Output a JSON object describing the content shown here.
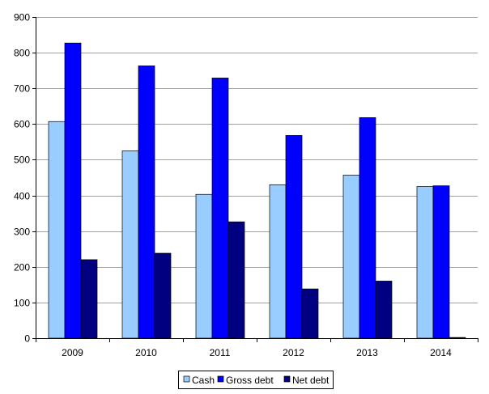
{
  "chart_data": {
    "type": "bar",
    "categories": [
      "2009",
      "2010",
      "2011",
      "2012",
      "2013",
      "2014"
    ],
    "series": [
      {
        "name": "Cash",
        "color": "#99ccff",
        "values": [
          607,
          525,
          403,
          430,
          457,
          425
        ]
      },
      {
        "name": "Gross debt",
        "color": "#0000ff",
        "values": [
          827,
          763,
          729,
          568,
          618,
          427
        ]
      },
      {
        "name": "Net debt",
        "color": "#000080",
        "values": [
          220,
          238,
          326,
          138,
          160,
          2
        ]
      }
    ],
    "ylim": [
      0,
      900
    ],
    "yticks": [
      0,
      100,
      200,
      300,
      400,
      500,
      600,
      700,
      800,
      900
    ],
    "ytick_labels": [
      "0",
      "100",
      "200",
      "300",
      "400",
      "500",
      "600",
      "700",
      "800",
      "900"
    ],
    "grid": true,
    "legend_position": "bottom",
    "title": "",
    "xlabel": "",
    "ylabel": ""
  }
}
